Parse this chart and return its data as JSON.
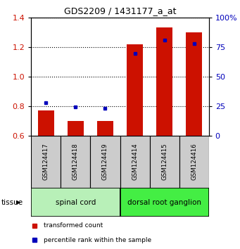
{
  "title": "GDS2209 / 1431177_a_at",
  "samples": [
    "GSM124417",
    "GSM124418",
    "GSM124419",
    "GSM124414",
    "GSM124415",
    "GSM124416"
  ],
  "red_values": [
    0.77,
    0.7,
    0.7,
    1.22,
    1.33,
    1.3
  ],
  "blue_values_left": [
    0.822,
    0.795,
    0.783,
    1.155,
    1.245,
    1.225
  ],
  "ylim_left": [
    0.6,
    1.4
  ],
  "ylim_right": [
    0,
    100
  ],
  "yticks_left": [
    0.6,
    0.8,
    1.0,
    1.2,
    1.4
  ],
  "yticks_right": [
    0,
    25,
    50,
    75,
    100
  ],
  "ytick_labels_right": [
    "0",
    "25",
    "50",
    "75",
    "100%"
  ],
  "groups": [
    {
      "label": "spinal cord",
      "color": "#B8F0B8",
      "indices": [
        0,
        1,
        2
      ]
    },
    {
      "label": "dorsal root ganglion",
      "color": "#44EE44",
      "indices": [
        3,
        4,
        5
      ]
    }
  ],
  "tissue_label": "tissue",
  "red_color": "#CC1100",
  "blue_color": "#0000BB",
  "bar_width": 0.55,
  "legend_red": "transformed count",
  "legend_blue": "percentile rank within the sample",
  "left_tick_color": "#CC1100",
  "right_tick_color": "#0000BB",
  "sample_box_color": "#CCCCCC",
  "grid_linestyle": "dotted",
  "grid_color": "#000000"
}
